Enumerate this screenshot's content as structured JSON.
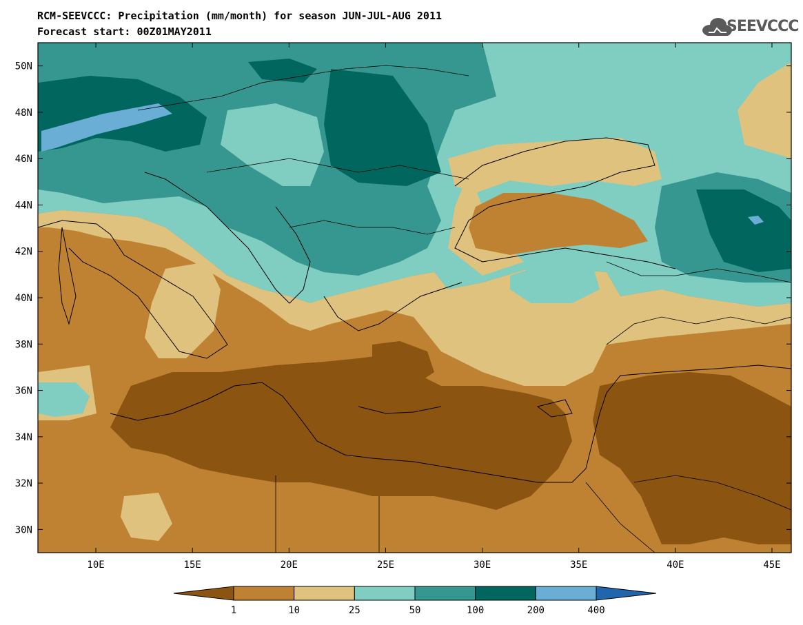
{
  "title": {
    "line1": "RCM-SEEVCCC: Precipitation (mm/month) for season JUN-JUL-AUG 2011",
    "line2": "Forecast start: 00Z01MAY2011"
  },
  "logo": {
    "text": "SEEVCCC",
    "icon": "cloud-icon",
    "color": "#5a5a5a"
  },
  "map": {
    "lon_range": [
      7,
      46
    ],
    "lat_range": [
      29,
      51
    ],
    "lon_ticks": [
      "10E",
      "15E",
      "20E",
      "25E",
      "30E",
      "35E",
      "40E",
      "45E"
    ],
    "lon_tick_values": [
      10,
      15,
      20,
      25,
      30,
      35,
      40,
      45
    ],
    "lat_ticks": [
      "30N",
      "32N",
      "34N",
      "36N",
      "38N",
      "40N",
      "42N",
      "44N",
      "46N",
      "48N",
      "50N"
    ],
    "lat_tick_values": [
      30,
      32,
      34,
      36,
      38,
      40,
      42,
      44,
      46,
      48,
      50
    ]
  },
  "colorbar": {
    "labels": [
      "1",
      "10",
      "25",
      "50",
      "100",
      "200",
      "400"
    ],
    "colors": [
      "#8b5410",
      "#bf8233",
      "#dfc27d",
      "#80cdc1",
      "#35978f",
      "#01665e",
      "#6aaed6",
      "#2166ac"
    ]
  }
}
